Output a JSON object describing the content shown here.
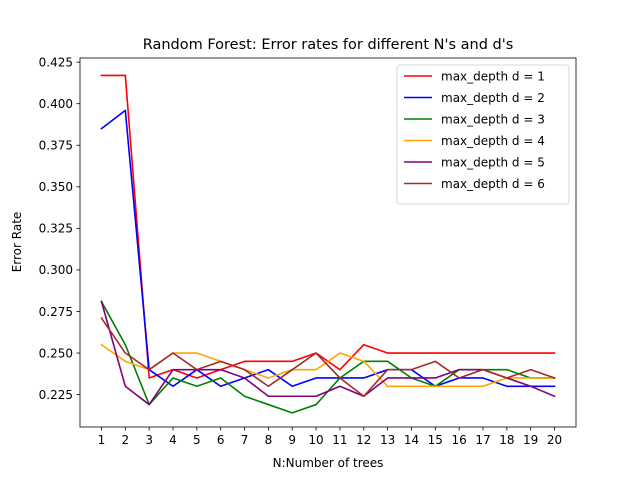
{
  "chart_data": {
    "type": "line",
    "title": "Random Forest: Error rates for different N's and d's",
    "xlabel": "N:Number of trees",
    "ylabel": "Error Rate",
    "x": [
      1,
      2,
      3,
      4,
      5,
      6,
      7,
      8,
      9,
      10,
      11,
      12,
      13,
      14,
      15,
      16,
      17,
      18,
      19,
      20
    ],
    "xlim": [
      0.1,
      20.9
    ],
    "ylim": [
      0.2055,
      0.4275
    ],
    "yticks": [
      0.225,
      0.25,
      0.275,
      0.3,
      0.325,
      0.35,
      0.375,
      0.4,
      0.425
    ],
    "ytick_labels": [
      "0.225",
      "0.250",
      "0.275",
      "0.300",
      "0.325",
      "0.350",
      "0.375",
      "0.400",
      "0.425"
    ],
    "grid": false,
    "legend_position": "top-right",
    "series": [
      {
        "name": "max_depth d = 1",
        "color": "#ff0000",
        "values": [
          0.417,
          0.417,
          0.235,
          0.24,
          0.235,
          0.24,
          0.245,
          0.245,
          0.245,
          0.25,
          0.24,
          0.255,
          0.25,
          0.25,
          0.25,
          0.25,
          0.25,
          0.25,
          0.25,
          0.25
        ]
      },
      {
        "name": "max_depth d = 2",
        "color": "#0000ff",
        "values": [
          0.385,
          0.396,
          0.24,
          0.23,
          0.24,
          0.23,
          0.235,
          0.24,
          0.23,
          0.235,
          0.235,
          0.235,
          0.24,
          0.24,
          0.23,
          0.235,
          0.235,
          0.23,
          0.23,
          0.23
        ]
      },
      {
        "name": "max_depth d = 3",
        "color": "#008000",
        "values": [
          0.281,
          0.255,
          0.219,
          0.235,
          0.23,
          0.235,
          0.224,
          0.219,
          0.214,
          0.219,
          0.235,
          0.245,
          0.245,
          0.235,
          0.23,
          0.24,
          0.24,
          0.24,
          0.235,
          0.235
        ]
      },
      {
        "name": "max_depth d = 4",
        "color": "#ffa500",
        "values": [
          0.255,
          0.245,
          0.24,
          0.25,
          0.25,
          0.245,
          0.24,
          0.235,
          0.24,
          0.24,
          0.25,
          0.245,
          0.23,
          0.23,
          0.23,
          0.23,
          0.23,
          0.235,
          0.235,
          0.235
        ]
      },
      {
        "name": "max_depth d = 5",
        "color": "#800080",
        "values": [
          0.281,
          0.23,
          0.219,
          0.24,
          0.24,
          0.24,
          0.235,
          0.224,
          0.224,
          0.224,
          0.23,
          0.224,
          0.235,
          0.235,
          0.235,
          0.24,
          0.24,
          0.235,
          0.23,
          0.224
        ]
      },
      {
        "name": "max_depth d = 6",
        "color": "#a52a2a",
        "values": [
          0.271,
          0.25,
          0.24,
          0.25,
          0.24,
          0.245,
          0.24,
          0.23,
          0.24,
          0.25,
          0.235,
          0.224,
          0.24,
          0.24,
          0.245,
          0.235,
          0.24,
          0.235,
          0.24,
          0.235
        ]
      }
    ]
  }
}
